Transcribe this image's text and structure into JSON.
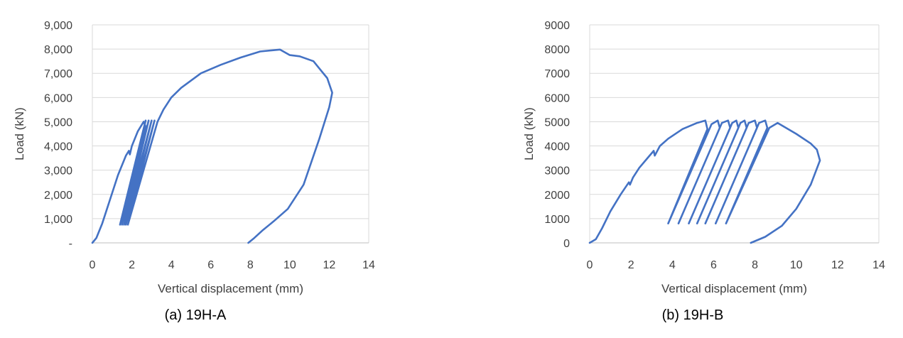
{
  "chart_data": [
    {
      "type": "line",
      "caption": "(a)  19H-A",
      "title": "",
      "xlabel": "Vertical displacement (mm)",
      "ylabel": "Load (kN)",
      "xlim": [
        0,
        14
      ],
      "ylim": [
        0,
        9000
      ],
      "x_ticks": [
        0,
        2,
        4,
        6,
        8,
        10,
        12,
        14
      ],
      "x_tick_labels": [
        "0",
        "2",
        "4",
        "6",
        "8",
        "10",
        "12",
        "14"
      ],
      "y_ticks": [
        0,
        1000,
        2000,
        3000,
        4000,
        5000,
        6000,
        7000,
        8000,
        9000
      ],
      "y_tick_labels": [
        "-",
        "1,000",
        "2,000",
        "3,000",
        "4,000",
        "5,000",
        "6,000",
        "7,000",
        "8,000",
        "9,000"
      ],
      "grid": "horizontal",
      "legend": "none",
      "color": "#4472C4",
      "series": [
        {
          "points": [
            [
              0.0,
              0
            ],
            [
              0.2,
              200
            ],
            [
              0.5,
              800
            ],
            [
              0.9,
              1800
            ],
            [
              1.3,
              2800
            ],
            [
              1.7,
              3600
            ],
            [
              1.85,
              3800
            ],
            [
              1.9,
              3650
            ],
            [
              2.0,
              4000
            ],
            [
              2.3,
              4600
            ],
            [
              2.6,
              5000
            ],
            [
              2.7,
              4800
            ],
            [
              1.4,
              750
            ],
            [
              2.7,
              5050
            ],
            [
              1.5,
              750
            ],
            [
              2.85,
              5050
            ],
            [
              1.6,
              750
            ],
            [
              3.0,
              5050
            ],
            [
              1.7,
              750
            ],
            [
              3.15,
              5050
            ],
            [
              1.8,
              750
            ],
            [
              3.3,
              5000
            ],
            [
              3.6,
              5500
            ],
            [
              4.0,
              6000
            ],
            [
              4.5,
              6400
            ],
            [
              5.5,
              7000
            ],
            [
              6.5,
              7350
            ],
            [
              7.5,
              7650
            ],
            [
              8.5,
              7900
            ],
            [
              9.5,
              7980
            ],
            [
              10.0,
              7750
            ],
            [
              10.5,
              7700
            ],
            [
              11.2,
              7500
            ],
            [
              11.5,
              7200
            ],
            [
              11.9,
              6800
            ],
            [
              12.15,
              6200
            ],
            [
              12.0,
              5600
            ],
            [
              11.5,
              4300
            ],
            [
              10.7,
              2400
            ],
            [
              9.9,
              1400
            ],
            [
              9.2,
              900
            ],
            [
              8.6,
              500
            ],
            [
              8.2,
              200
            ],
            [
              7.9,
              0
            ]
          ]
        }
      ]
    },
    {
      "type": "line",
      "caption": "(b)  19H-B",
      "title": "",
      "xlabel": "Vertical displacement (mm)",
      "ylabel": "Load (kN)",
      "xlim": [
        0,
        14
      ],
      "ylim": [
        0,
        9000
      ],
      "x_ticks": [
        0,
        2,
        4,
        6,
        8,
        10,
        12,
        14
      ],
      "x_tick_labels": [
        "0",
        "2",
        "4",
        "6",
        "8",
        "10",
        "12",
        "14"
      ],
      "y_ticks": [
        0,
        1000,
        2000,
        3000,
        4000,
        5000,
        6000,
        7000,
        8000,
        9000
      ],
      "y_tick_labels": [
        "0",
        "1000",
        "2000",
        "3000",
        "4000",
        "5000",
        "6000",
        "7000",
        "8000",
        "9000"
      ],
      "grid": "horizontal",
      "legend": "none",
      "color": "#4472C4",
      "series": [
        {
          "points": [
            [
              0.0,
              0
            ],
            [
              0.3,
              150
            ],
            [
              0.6,
              600
            ],
            [
              1.0,
              1300
            ],
            [
              1.5,
              2000
            ],
            [
              1.9,
              2500
            ],
            [
              1.95,
              2400
            ],
            [
              2.1,
              2700
            ],
            [
              2.4,
              3100
            ],
            [
              2.8,
              3500
            ],
            [
              3.1,
              3800
            ],
            [
              3.15,
              3600
            ],
            [
              3.4,
              4000
            ],
            [
              3.8,
              4300
            ],
            [
              4.5,
              4700
            ],
            [
              5.2,
              4950
            ],
            [
              5.6,
              5050
            ],
            [
              5.7,
              4700
            ],
            [
              3.8,
              800
            ],
            [
              5.9,
              4900
            ],
            [
              6.2,
              5050
            ],
            [
              6.3,
              4750
            ],
            [
              4.3,
              800
            ],
            [
              6.4,
              4950
            ],
            [
              6.7,
              5050
            ],
            [
              6.8,
              4750
            ],
            [
              4.8,
              800
            ],
            [
              6.9,
              4950
            ],
            [
              7.1,
              5050
            ],
            [
              7.2,
              4750
            ],
            [
              5.2,
              800
            ],
            [
              7.3,
              4950
            ],
            [
              7.5,
              5050
            ],
            [
              7.6,
              4750
            ],
            [
              5.6,
              800
            ],
            [
              7.7,
              4950
            ],
            [
              8.0,
              5050
            ],
            [
              8.1,
              4750
            ],
            [
              6.1,
              800
            ],
            [
              8.2,
              4950
            ],
            [
              8.5,
              5050
            ],
            [
              8.6,
              4750
            ],
            [
              6.6,
              800
            ],
            [
              8.7,
              4750
            ],
            [
              9.1,
              4950
            ],
            [
              10.0,
              4500
            ],
            [
              10.7,
              4100
            ],
            [
              11.0,
              3850
            ],
            [
              11.15,
              3400
            ],
            [
              10.7,
              2400
            ],
            [
              10.0,
              1400
            ],
            [
              9.3,
              700
            ],
            [
              8.5,
              250
            ],
            [
              7.8,
              0
            ]
          ]
        }
      ]
    }
  ]
}
